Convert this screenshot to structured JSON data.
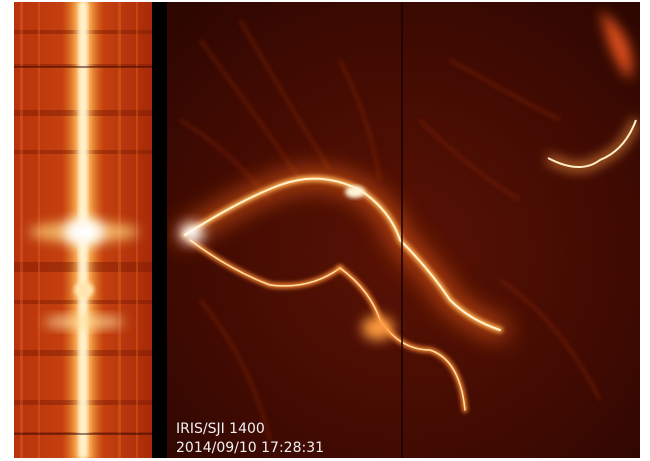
{
  "image": {
    "instrument_label": "IRIS/SJI 1400",
    "timestamp": "2014/09/10 17:28:31"
  }
}
